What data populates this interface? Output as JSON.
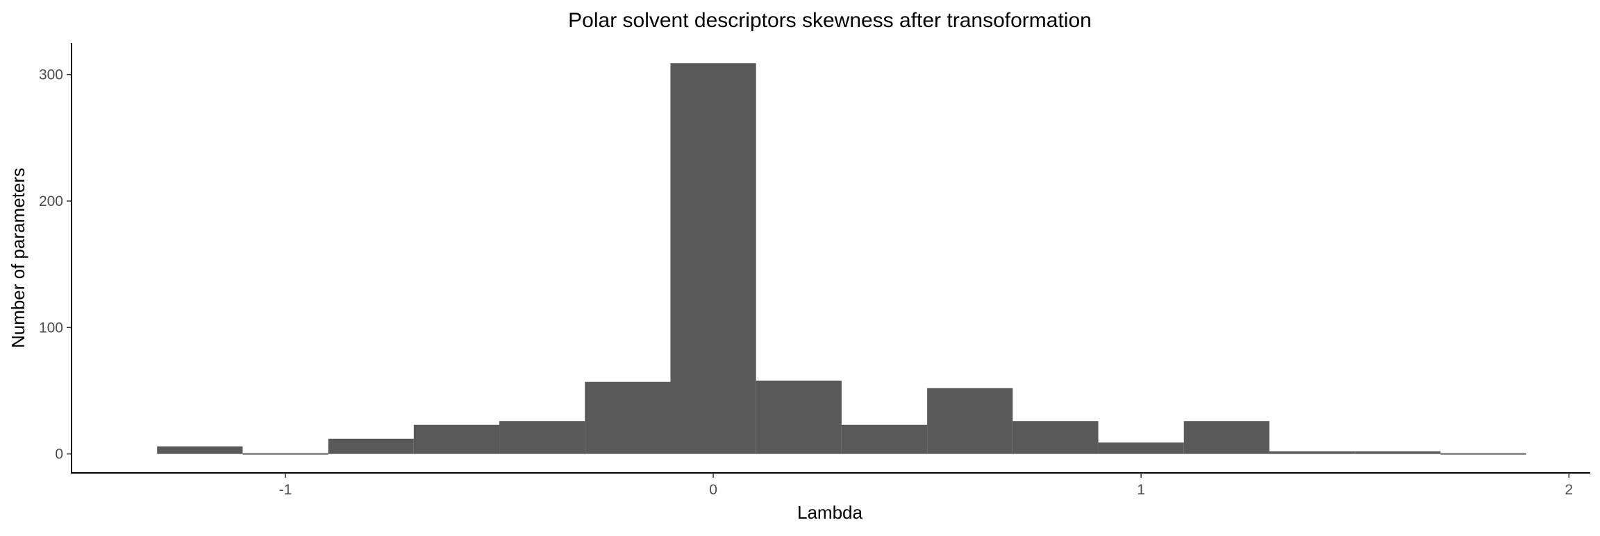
{
  "chart_data": {
    "type": "bar",
    "title": "Polar solvent descriptors skewness after transoformation",
    "xlabel": "Lambda",
    "ylabel": "Number of parameters",
    "xlim": [
      -1.5,
      2.05
    ],
    "ylim": [
      -15,
      325
    ],
    "bin_width": 0.2,
    "x_ticks": [
      {
        "value": -1,
        "label": "-1"
      },
      {
        "value": 0,
        "label": "0"
      },
      {
        "value": 1,
        "label": "1"
      },
      {
        "value": 2,
        "label": "2"
      }
    ],
    "y_ticks": [
      {
        "value": 0,
        "label": "0"
      },
      {
        "value": 100,
        "label": "100"
      },
      {
        "value": 200,
        "label": "200"
      },
      {
        "value": 300,
        "label": "300"
      }
    ],
    "bins": [
      {
        "x_min": -1.3,
        "x_max": -1.1,
        "count": 6
      },
      {
        "x_min": -1.1,
        "x_max": -0.9,
        "count": 0
      },
      {
        "x_min": -0.9,
        "x_max": -0.7,
        "count": 12
      },
      {
        "x_min": -0.7,
        "x_max": -0.5,
        "count": 23
      },
      {
        "x_min": -0.5,
        "x_max": -0.3,
        "count": 26
      },
      {
        "x_min": -0.3,
        "x_max": -0.1,
        "count": 57
      },
      {
        "x_min": -0.1,
        "x_max": 0.1,
        "count": 309
      },
      {
        "x_min": 0.1,
        "x_max": 0.3,
        "count": 58
      },
      {
        "x_min": 0.3,
        "x_max": 0.5,
        "count": 23
      },
      {
        "x_min": 0.5,
        "x_max": 0.7,
        "count": 52
      },
      {
        "x_min": 0.7,
        "x_max": 0.9,
        "count": 26
      },
      {
        "x_min": 0.9,
        "x_max": 1.1,
        "count": 9
      },
      {
        "x_min": 1.1,
        "x_max": 1.3,
        "count": 26
      },
      {
        "x_min": 1.3,
        "x_max": 1.5,
        "count": 2
      },
      {
        "x_min": 1.5,
        "x_max": 1.7,
        "count": 2
      },
      {
        "x_min": 1.7,
        "x_max": 1.9,
        "count": 0
      }
    ],
    "bar_color": "#595959",
    "grid": false
  }
}
